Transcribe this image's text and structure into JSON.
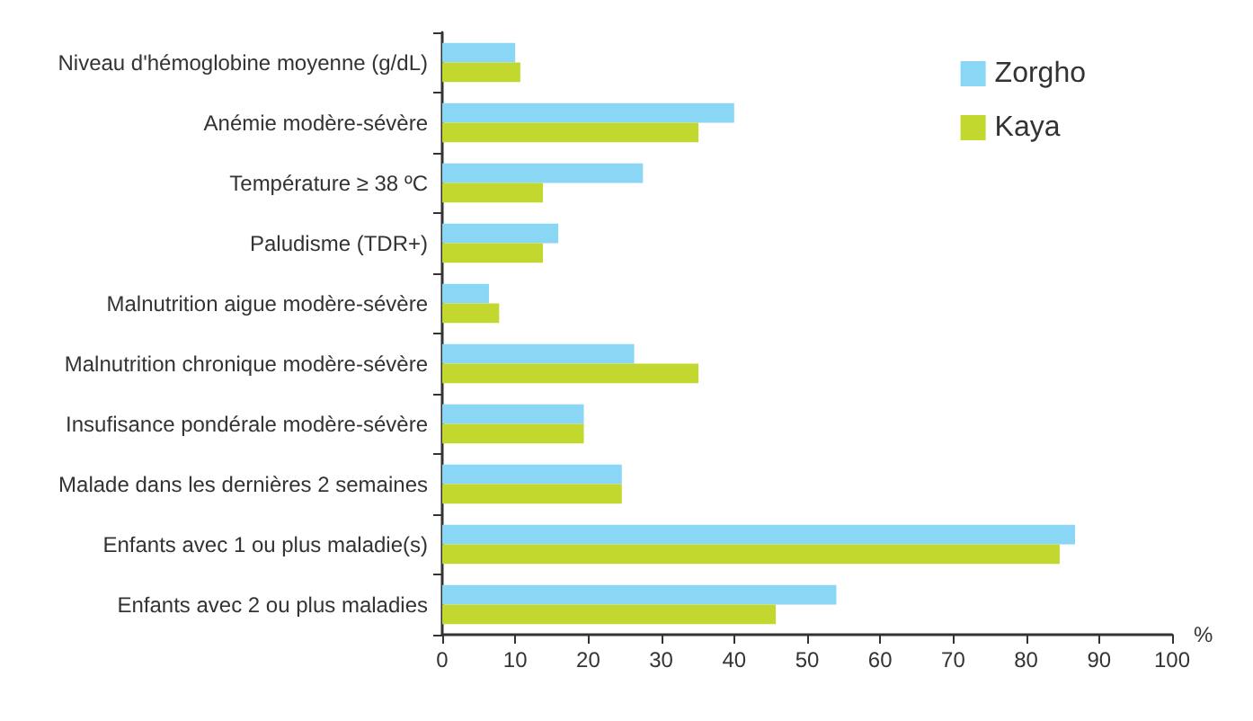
{
  "chart_data": {
    "type": "bar",
    "orientation": "horizontal",
    "categories": [
      "Niveau d'hémoglobine moyenne (g/dL)",
      "Anémie modère-sévère",
      "Température ≥ 38 ºC",
      "Paludisme (TDR+)",
      "Malnutrition aigue modère-sévère",
      "Malnutrition chronique modère-sévère",
      "Insufisance pondérale modère-sévère",
      "Malade dans les dernières 2 semaines",
      "Enfants avec 1 ou plus maladie(s)",
      "Enfants avec 2 ou plus maladies"
    ],
    "series": [
      {
        "name": "Zorgho",
        "color": "#8ad6f5",
        "values": [
          10.0,
          40.0,
          27.5,
          15.9,
          6.4,
          26.3,
          19.4,
          24.6,
          86.7,
          54.0
        ]
      },
      {
        "name": "Kaya",
        "color": "#c2d82e",
        "values": [
          10.7,
          35.1,
          13.8,
          13.8,
          7.8,
          35.1,
          19.4,
          24.6,
          84.6,
          45.7
        ]
      }
    ],
    "xlim": [
      0,
      100
    ],
    "xticks": [
      0,
      10,
      20,
      30,
      40,
      50,
      60,
      70,
      80,
      90,
      100
    ],
    "xlabel": "%",
    "grid": false,
    "legend": "top right"
  }
}
